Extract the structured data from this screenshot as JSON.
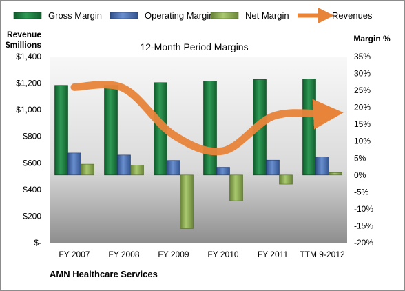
{
  "chart_data": {
    "type": "bar",
    "title": "12-Month Period Margins",
    "company": "AMN Healthcare Services",
    "categories": [
      "FY 2007",
      "FY 2008",
      "FY 2009",
      "FY 2010",
      "FY 2011",
      "TTM 9-2012"
    ],
    "left_axis": {
      "label_line1": "Revenue",
      "label_line2": "$millions",
      "min": 0,
      "max": 1400,
      "step": 200,
      "tick_labels": [
        "$-",
        "$200",
        "$400",
        "$600",
        "$800",
        "$1,000",
        "$1,200",
        "$1,400"
      ]
    },
    "right_axis": {
      "label": "Margin %",
      "min": -20,
      "max": 35,
      "step": 5,
      "tick_labels": [
        "-20%",
        "-15%",
        "-10%",
        "-5%",
        "0%",
        "5%",
        "10%",
        "15%",
        "20%",
        "25%",
        "30%",
        "35%"
      ]
    },
    "series": [
      {
        "name": "Gross Margin",
        "axis": "right",
        "color": "#1f7a3f",
        "values": [
          26.5,
          26.5,
          27.3,
          27.8,
          28.2,
          28.4
        ]
      },
      {
        "name": "Operating Margin",
        "axis": "right",
        "color": "#4a6fb0",
        "values": [
          6.5,
          5.9,
          4.3,
          2.3,
          4.4,
          5.4
        ]
      },
      {
        "name": "Net Margin",
        "axis": "right",
        "color": "#8db356",
        "values": [
          3.2,
          2.9,
          -15.8,
          -7.6,
          -2.7,
          0.7
        ]
      },
      {
        "name": "Revenues",
        "axis": "left",
        "color": "#e8843a",
        "values": [
          1170,
          1160,
          810,
          690,
          950,
          970
        ]
      }
    ],
    "grid": false,
    "legend_position": "top"
  }
}
